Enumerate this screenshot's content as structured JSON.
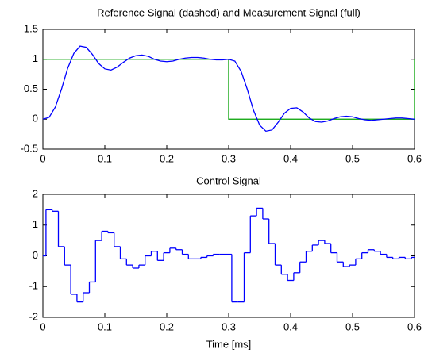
{
  "chart_data": [
    {
      "type": "line",
      "title": "Reference Signal (dashed) and Measurement Signal (full)",
      "xlim": [
        0,
        0.6
      ],
      "ylim": [
        -0.5,
        1.5
      ],
      "xticks": [
        0,
        0.1,
        0.2,
        0.3,
        0.4,
        0.5,
        0.6
      ],
      "yticks": [
        -0.5,
        0,
        0.5,
        1,
        1.5
      ],
      "series": [
        {
          "color": "#00a000",
          "x": [
            0,
            0.3,
            0.3,
            0.6,
            0.6
          ],
          "values": [
            1,
            1,
            0,
            0,
            1
          ]
        },
        {
          "color": "#0000ff",
          "x": [
            0,
            0.01,
            0.02,
            0.03,
            0.04,
            0.05,
            0.06,
            0.07,
            0.08,
            0.09,
            0.1,
            0.11,
            0.12,
            0.13,
            0.14,
            0.15,
            0.16,
            0.17,
            0.18,
            0.19,
            0.2,
            0.21,
            0.22,
            0.23,
            0.24,
            0.25,
            0.26,
            0.27,
            0.28,
            0.29,
            0.3,
            0.31,
            0.32,
            0.33,
            0.34,
            0.35,
            0.36,
            0.37,
            0.38,
            0.39,
            0.4,
            0.41,
            0.42,
            0.43,
            0.44,
            0.45,
            0.46,
            0.47,
            0.48,
            0.49,
            0.5,
            0.51,
            0.52,
            0.53,
            0.54,
            0.55,
            0.56,
            0.57,
            0.58,
            0.59,
            0.6
          ],
          "values": [
            0,
            0.03,
            0.2,
            0.5,
            0.85,
            1.1,
            1.22,
            1.2,
            1.08,
            0.93,
            0.84,
            0.82,
            0.87,
            0.95,
            1.02,
            1.06,
            1.07,
            1.05,
            1.0,
            0.97,
            0.96,
            0.97,
            1.0,
            1.02,
            1.03,
            1.03,
            1.02,
            1.0,
            0.99,
            0.99,
            1.0,
            0.97,
            0.8,
            0.5,
            0.15,
            -0.1,
            -0.2,
            -0.18,
            -0.05,
            0.1,
            0.18,
            0.19,
            0.12,
            0.02,
            -0.04,
            -0.05,
            -0.03,
            0.01,
            0.04,
            0.05,
            0.04,
            0.01,
            -0.01,
            -0.02,
            -0.01,
            0,
            0.01,
            0.02,
            0.02,
            0.01,
            0
          ]
        }
      ]
    },
    {
      "type": "stairs",
      "title": "Control Signal",
      "xlabel": "Time [ms]",
      "xlim": [
        0,
        0.6
      ],
      "ylim": [
        -2,
        2
      ],
      "xticks": [
        0,
        0.1,
        0.2,
        0.3,
        0.4,
        0.5,
        0.6
      ],
      "yticks": [
        -2,
        -1,
        0,
        1,
        2
      ],
      "series": [
        {
          "color": "#0000ff",
          "x": [
            0,
            0.005,
            0.015,
            0.025,
            0.035,
            0.045,
            0.055,
            0.065,
            0.075,
            0.085,
            0.095,
            0.105,
            0.115,
            0.125,
            0.135,
            0.145,
            0.155,
            0.165,
            0.175,
            0.185,
            0.195,
            0.205,
            0.215,
            0.225,
            0.235,
            0.245,
            0.255,
            0.265,
            0.275,
            0.285,
            0.295,
            0.305,
            0.315,
            0.325,
            0.335,
            0.345,
            0.355,
            0.365,
            0.375,
            0.385,
            0.395,
            0.405,
            0.415,
            0.425,
            0.435,
            0.445,
            0.455,
            0.465,
            0.475,
            0.485,
            0.495,
            0.505,
            0.515,
            0.525,
            0.535,
            0.545,
            0.555,
            0.565,
            0.575,
            0.585,
            0.595
          ],
          "values": [
            0,
            1.5,
            1.45,
            0.3,
            -0.3,
            -1.25,
            -1.5,
            -1.2,
            -0.85,
            0.5,
            0.8,
            0.75,
            0.3,
            -0.1,
            -0.3,
            -0.4,
            -0.3,
            0,
            0.15,
            -0.15,
            0.1,
            0.25,
            0.2,
            0.05,
            -0.1,
            -0.1,
            -0.05,
            0,
            0.05,
            0.05,
            0.05,
            -1.5,
            -1.5,
            0.1,
            1.3,
            1.55,
            1.2,
            0.4,
            -0.3,
            -0.6,
            -0.8,
            -0.55,
            -0.2,
            0.15,
            0.35,
            0.5,
            0.4,
            0.1,
            -0.2,
            -0.35,
            -0.3,
            -0.1,
            0.1,
            0.2,
            0.15,
            0.05,
            -0.05,
            -0.1,
            -0.05,
            -0.1,
            -0.05
          ]
        }
      ]
    }
  ]
}
